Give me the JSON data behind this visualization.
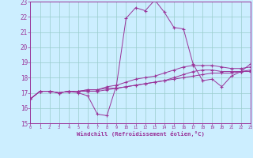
{
  "xlabel": "Windchill (Refroidissement éolien,°C)",
  "xlim": [
    0,
    23
  ],
  "ylim": [
    15,
    23
  ],
  "yticks": [
    15,
    16,
    17,
    18,
    19,
    20,
    21,
    22,
    23
  ],
  "xticks": [
    0,
    1,
    2,
    3,
    4,
    5,
    6,
    7,
    8,
    9,
    10,
    11,
    12,
    13,
    14,
    15,
    16,
    17,
    18,
    19,
    20,
    21,
    22,
    23
  ],
  "bg_color": "#cceeff",
  "line_color": "#993399",
  "grid_color": "#99cccc",
  "line1_x": [
    0,
    1,
    2,
    3,
    4,
    5,
    6,
    7,
    8,
    9,
    10,
    11,
    12,
    13,
    14,
    15,
    16,
    17,
    18,
    19,
    20,
    21,
    22,
    23
  ],
  "line1_y": [
    16.6,
    17.1,
    17.1,
    17.0,
    17.1,
    17.0,
    16.8,
    15.6,
    15.5,
    17.5,
    21.9,
    22.6,
    22.4,
    23.1,
    22.3,
    21.3,
    21.2,
    18.9,
    17.8,
    17.9,
    17.4,
    18.1,
    18.4,
    18.9
  ],
  "line2_x": [
    0,
    1,
    2,
    3,
    4,
    5,
    6,
    7,
    8,
    9,
    10,
    11,
    12,
    13,
    14,
    15,
    16,
    17,
    18,
    19,
    20,
    21,
    22,
    23
  ],
  "line2_y": [
    16.6,
    17.1,
    17.1,
    17.0,
    17.1,
    17.1,
    17.1,
    17.1,
    17.2,
    17.3,
    17.4,
    17.5,
    17.6,
    17.7,
    17.8,
    17.9,
    18.0,
    18.1,
    18.2,
    18.3,
    18.3,
    18.3,
    18.4,
    18.4
  ],
  "line3_x": [
    0,
    1,
    2,
    3,
    4,
    5,
    6,
    7,
    8,
    9,
    10,
    11,
    12,
    13,
    14,
    15,
    16,
    17,
    18,
    19,
    20,
    21,
    22,
    23
  ],
  "line3_y": [
    16.6,
    17.1,
    17.1,
    17.0,
    17.1,
    17.1,
    17.2,
    17.2,
    17.3,
    17.3,
    17.4,
    17.5,
    17.6,
    17.7,
    17.8,
    18.0,
    18.2,
    18.4,
    18.5,
    18.5,
    18.4,
    18.4,
    18.4,
    18.5
  ],
  "line4_x": [
    0,
    1,
    2,
    3,
    4,
    5,
    6,
    7,
    8,
    9,
    10,
    11,
    12,
    13,
    14,
    15,
    16,
    17,
    18,
    19,
    20,
    21,
    22,
    23
  ],
  "line4_y": [
    16.6,
    17.1,
    17.1,
    17.0,
    17.1,
    17.1,
    17.2,
    17.2,
    17.4,
    17.5,
    17.7,
    17.9,
    18.0,
    18.1,
    18.3,
    18.5,
    18.7,
    18.8,
    18.8,
    18.8,
    18.7,
    18.6,
    18.6,
    18.7
  ]
}
